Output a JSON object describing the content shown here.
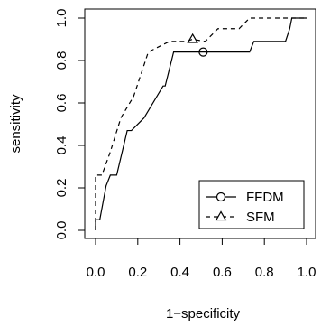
{
  "chart_data": {
    "type": "line",
    "title": "",
    "xlabel": "1−specificity",
    "ylabel": "sensitivity",
    "xlim": [
      0,
      1
    ],
    "ylim": [
      0,
      1
    ],
    "x_ticks": [
      "0.0",
      "0.2",
      "0.4",
      "0.6",
      "0.8",
      "1.0"
    ],
    "y_ticks": [
      "0.0",
      "0.2",
      "0.4",
      "0.6",
      "0.8",
      "1.0"
    ],
    "grid": false,
    "legend_position": "bottom-right",
    "series": [
      {
        "name": "FFDM",
        "line_style": "solid",
        "marker": "circle",
        "marker_point": [
          0.51,
          0.84
        ],
        "points": [
          [
            0.0,
            0.0
          ],
          [
            0.0,
            0.05
          ],
          [
            0.02,
            0.05
          ],
          [
            0.05,
            0.21
          ],
          [
            0.07,
            0.26
          ],
          [
            0.1,
            0.26
          ],
          [
            0.15,
            0.47
          ],
          [
            0.17,
            0.47
          ],
          [
            0.23,
            0.53
          ],
          [
            0.32,
            0.68
          ],
          [
            0.33,
            0.68
          ],
          [
            0.37,
            0.84
          ],
          [
            0.73,
            0.84
          ],
          [
            0.75,
            0.89
          ],
          [
            0.9,
            0.89
          ],
          [
            0.92,
            0.95
          ],
          [
            0.93,
            1.0
          ],
          [
            1.0,
            1.0
          ]
        ]
      },
      {
        "name": "SFM",
        "line_style": "dashed",
        "marker": "triangle",
        "marker_point": [
          0.46,
          0.9
        ],
        "points": [
          [
            0.0,
            0.0
          ],
          [
            0.0,
            0.26
          ],
          [
            0.03,
            0.26
          ],
          [
            0.07,
            0.37
          ],
          [
            0.12,
            0.53
          ],
          [
            0.18,
            0.63
          ],
          [
            0.25,
            0.84
          ],
          [
            0.35,
            0.89
          ],
          [
            0.43,
            0.89
          ],
          [
            0.46,
            0.9
          ],
          [
            0.52,
            0.89
          ],
          [
            0.58,
            0.95
          ],
          [
            0.68,
            0.95
          ],
          [
            0.73,
            1.0
          ],
          [
            1.0,
            1.0
          ]
        ]
      }
    ]
  }
}
